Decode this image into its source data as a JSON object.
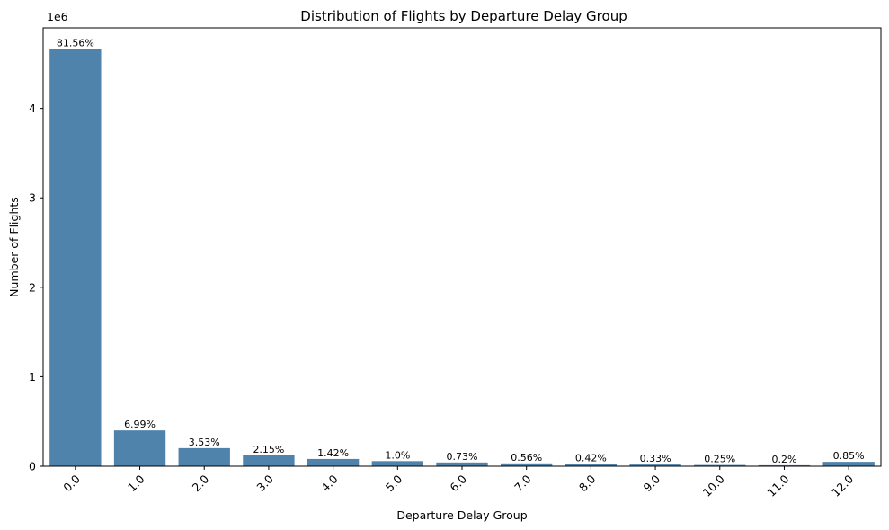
{
  "chart_data": {
    "type": "bar",
    "title": "Distribution of Flights by Departure Delay Group",
    "xlabel": "Departure Delay Group",
    "ylabel": "Number of Flights",
    "y_offset_label": "1e6",
    "categories": [
      "0.0",
      "1.0",
      "2.0",
      "3.0",
      "4.0",
      "5.0",
      "6.0",
      "7.0",
      "8.0",
      "9.0",
      "10.0",
      "11.0",
      "12.0"
    ],
    "values": [
      4.665,
      0.4,
      0.202,
      0.123,
      0.081,
      0.057,
      0.042,
      0.032,
      0.024,
      0.019,
      0.014,
      0.011,
      0.049
    ],
    "percent_labels": [
      "81.56%",
      "6.99%",
      "3.53%",
      "2.15%",
      "1.42%",
      "1.0%",
      "0.73%",
      "0.56%",
      "0.42%",
      "0.33%",
      "0.25%",
      "0.2%",
      "0.85%"
    ],
    "yticks": [
      0,
      1,
      2,
      3,
      4
    ],
    "ytick_labels": [
      "0",
      "1",
      "2",
      "3",
      "4"
    ],
    "ylim": [
      0,
      4.9
    ],
    "bar_color": "#4f83ab",
    "grid": false
  }
}
